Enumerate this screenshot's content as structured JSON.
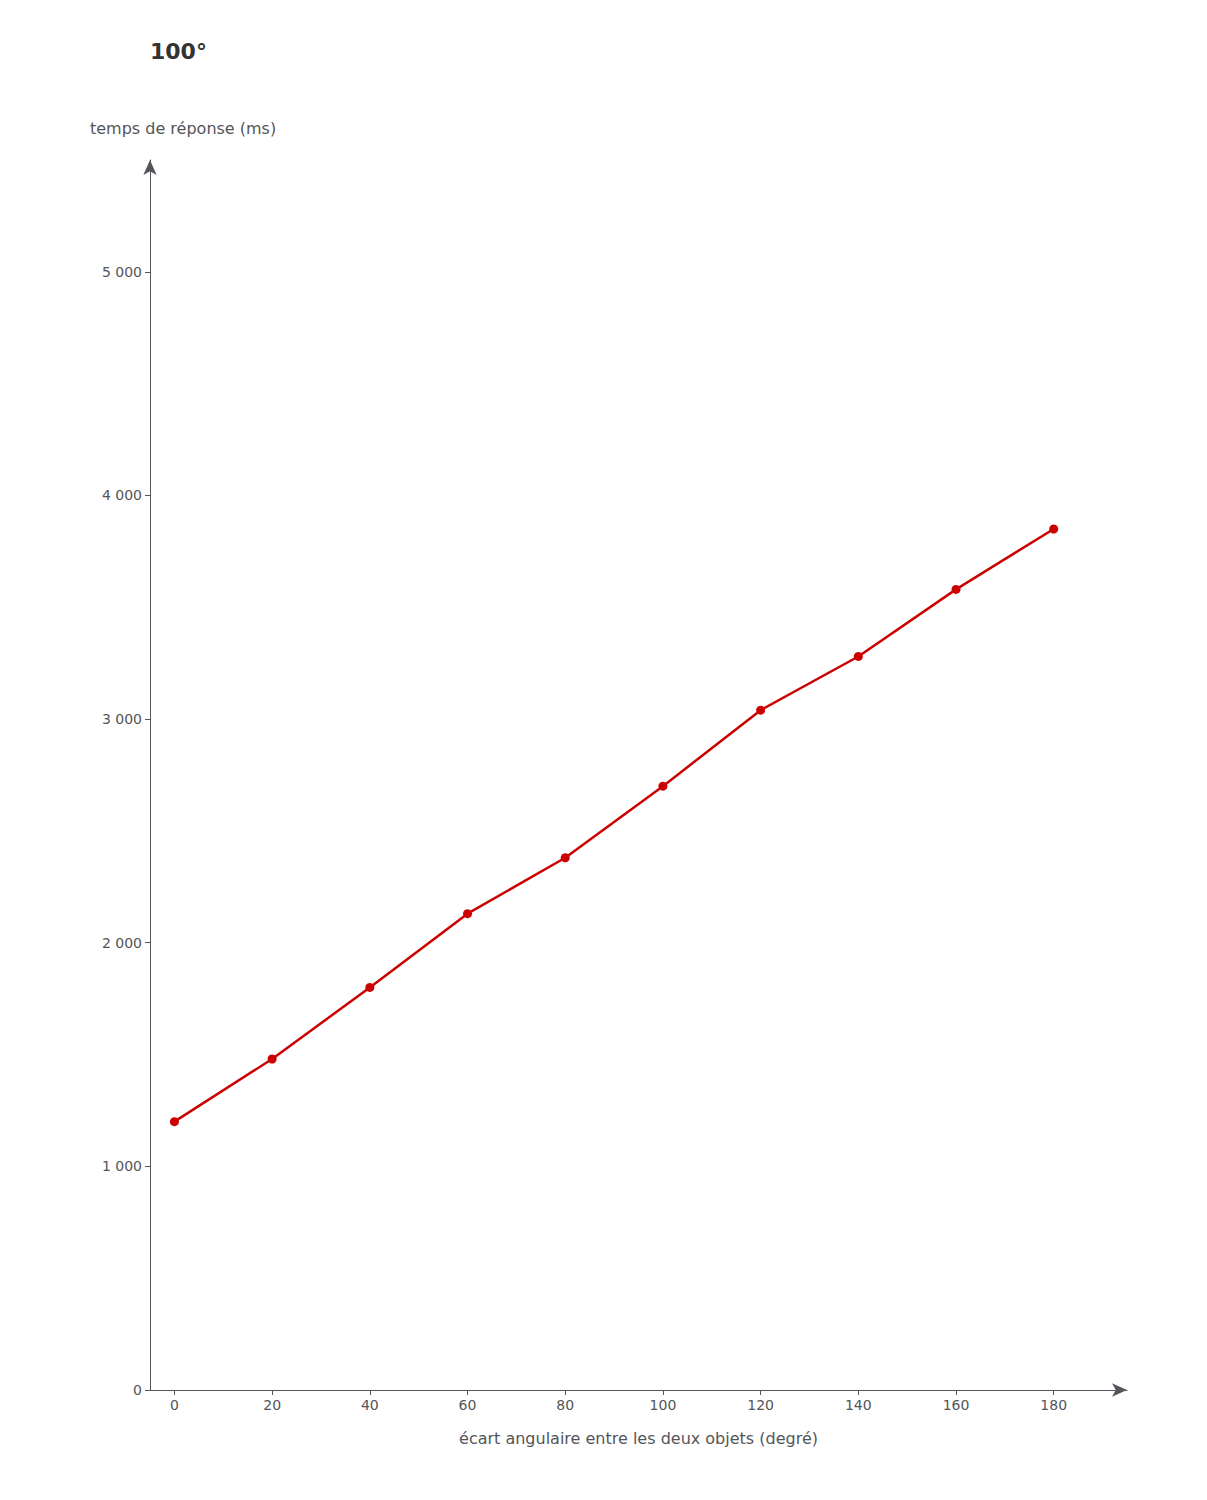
{
  "chart_data": {
    "type": "line",
    "annotation": "100°",
    "xlabel": "écart angulaire entre les deux objets (degré)",
    "ylabel": "temps de réponse (ms)",
    "x": [
      0,
      20,
      40,
      60,
      80,
      100,
      120,
      140,
      160,
      180
    ],
    "values": [
      1200,
      1480,
      1800,
      2130,
      2380,
      2700,
      3040,
      3280,
      3580,
      3850
    ],
    "color": "#CC0000",
    "marker": "circle",
    "xlim": [
      -5,
      195
    ],
    "ylim": [
      0,
      5500
    ],
    "xticks": [
      0,
      20,
      40,
      60,
      80,
      100,
      120,
      140,
      160,
      180
    ],
    "yticks": [
      0,
      {
        "value": 1000,
        "label": "1 000"
      },
      {
        "value": 2000,
        "label": "2 000"
      },
      {
        "value": 3000,
        "label": "3 000"
      },
      {
        "value": 4000,
        "label": "4 000"
      },
      {
        "value": 5000,
        "label": "5 000"
      }
    ],
    "grid": false
  }
}
